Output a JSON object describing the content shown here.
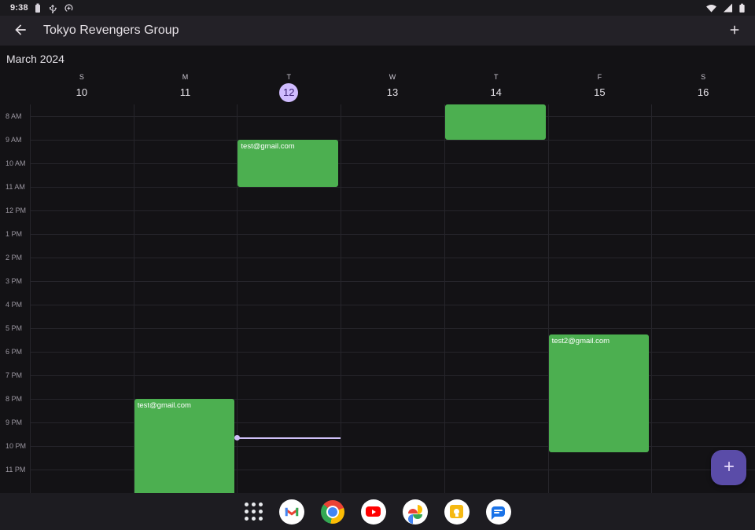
{
  "status_bar": {
    "time": "9:38",
    "left_icons": [
      "battery-icon",
      "usb-icon",
      "data-saver-icon"
    ],
    "right_icons": [
      "wifi-icon",
      "cellular-signal-icon",
      "battery-icon"
    ]
  },
  "app_bar": {
    "title": "Tokyo Revengers Group",
    "icons": [
      "back-arrow-icon",
      "add-icon"
    ]
  },
  "calendar": {
    "month_label": "March 2024",
    "day_headers": [
      {
        "letter": "S",
        "number": "10",
        "selected": false
      },
      {
        "letter": "M",
        "number": "11",
        "selected": false
      },
      {
        "letter": "T",
        "number": "12",
        "selected": true
      },
      {
        "letter": "W",
        "number": "13",
        "selected": false
      },
      {
        "letter": "T",
        "number": "14",
        "selected": false
      },
      {
        "letter": "F",
        "number": "15",
        "selected": false
      },
      {
        "letter": "S",
        "number": "16",
        "selected": false
      }
    ],
    "hour_labels": [
      "8 AM",
      "9 AM",
      "10 AM",
      "11 AM",
      "12 PM",
      "1 PM",
      "2 PM",
      "3 PM",
      "4 PM",
      "5 PM",
      "6 PM",
      "7 PM",
      "8 PM",
      "9 PM",
      "10 PM",
      "11 PM"
    ],
    "events": [
      {
        "day_index": 4,
        "start_hour": 7.5,
        "end_hour": 9.0,
        "label": "",
        "color": "#4caf50"
      },
      {
        "day_index": 2,
        "start_hour": 9.0,
        "end_hour": 11.0,
        "label": "test@gmail.com",
        "color": "#4caf50"
      },
      {
        "day_index": 5,
        "start_hour": 17.25,
        "end_hour": 22.25,
        "label": "test2@gmail.com",
        "color": "#4caf50"
      },
      {
        "day_index": 1,
        "start_hour": 20.0,
        "end_hour": 24.6,
        "label": "test@gmail.com",
        "color": "#4caf50"
      }
    ],
    "now_indicator": {
      "day_index": 2,
      "hour": 21.65,
      "color": "#cfc0f8"
    }
  },
  "taskbar": {
    "apps": [
      "app-drawer-icon",
      "gmail-icon",
      "chrome-icon",
      "youtube-icon",
      "google-photos-icon",
      "keep-icon",
      "messages-icon"
    ]
  },
  "fab": {
    "icon": "plus-icon"
  },
  "colors": {
    "event_green": "#4caf50",
    "selected_day_bg": "#d0bcff",
    "selected_day_text": "#381e72",
    "fab_bg": "#5a4ca8",
    "now_line": "#cfc0f8"
  }
}
